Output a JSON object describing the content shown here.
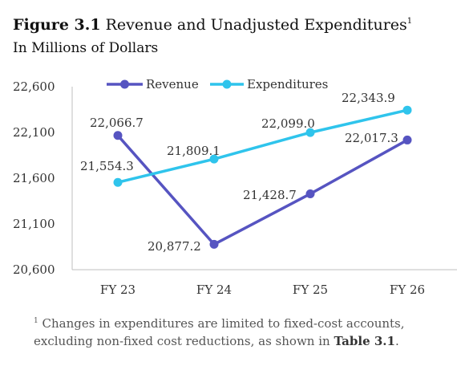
{
  "heading": {
    "figure_label": "Figure 3.1",
    "title": "Revenue and Unadjusted Expenditures",
    "footnote_marker": "1",
    "subtitle": "In Millions of Dollars"
  },
  "footnote": {
    "marker": "1",
    "text": "Changes in expenditures are limited to fixed-cost accounts, excluding non-fixed cost reductions, as shown in",
    "ref": "Table 3.1",
    "end": "."
  },
  "colors": {
    "revenue": "#5654c1",
    "expenditures": "#2fc4ec",
    "axis": "#bfbfbf",
    "label": "#333333"
  },
  "chart_data": {
    "type": "line",
    "categories": [
      "FY 23",
      "FY 24",
      "FY 25",
      "FY 26"
    ],
    "ylim": [
      20600,
      22600
    ],
    "yticks": [
      "20,600",
      "21,100",
      "21,600",
      "22,100",
      "22,600"
    ],
    "grid": false,
    "legend_position": "top",
    "series": [
      {
        "name": "Revenue",
        "values": [
          22066.7,
          20877.2,
          21428.7,
          22017.3
        ],
        "labels": [
          "22,066.7",
          "20,877.2",
          "21,428.7",
          "22,017.3"
        ]
      },
      {
        "name": "Expenditures",
        "values": [
          21554.3,
          21809.1,
          22099.0,
          22343.9
        ],
        "labels": [
          "21,554.3",
          "21,809.1",
          "22,099.0",
          "22,343.9"
        ]
      }
    ]
  }
}
